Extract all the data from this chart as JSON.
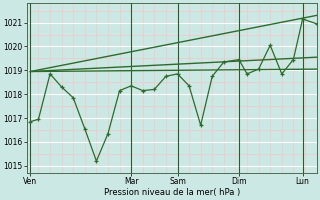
{
  "xlabel": "Pression niveau de la mer( hPa )",
  "bg_color": "#cce8e4",
  "grid_major_color": "#ffffff",
  "grid_minor_color": "#f0c8c8",
  "line_color": "#2d6b2d",
  "vline_color": "#2d5a2d",
  "ylim": [
    1014.7,
    1021.8
  ],
  "yticks": [
    1015,
    1016,
    1017,
    1018,
    1019,
    1020,
    1021
  ],
  "xlim": [
    0,
    25
  ],
  "day_labels": [
    "Ven",
    "Mar",
    "Sam",
    "Dim",
    "Lun"
  ],
  "day_positions": [
    0.3,
    9.0,
    13.0,
    18.3,
    23.8
  ],
  "vline_positions": [
    0.3,
    9.0,
    13.0,
    18.3,
    23.8
  ],
  "zigzag_x": [
    0.3,
    1.0,
    2.0,
    3.0,
    4.0,
    5.0,
    6.0,
    7.0,
    8.0,
    9.0,
    10.0,
    11.0,
    12.0,
    13.0,
    14.0,
    15.0,
    16.0,
    17.0,
    18.3,
    19.0,
    20.0,
    21.0,
    22.0,
    23.0,
    23.8,
    25.0
  ],
  "zigzag_y": [
    1016.85,
    1016.95,
    1018.85,
    1018.3,
    1017.85,
    1016.55,
    1015.2,
    1016.35,
    1018.15,
    1018.35,
    1018.15,
    1018.2,
    1018.75,
    1018.85,
    1018.35,
    1016.7,
    1018.75,
    1019.35,
    1019.45,
    1018.85,
    1019.05,
    1020.05,
    1018.85,
    1019.45,
    1021.15,
    1020.95
  ],
  "trend1_x": [
    0.3,
    25.0
  ],
  "trend1_y": [
    1018.95,
    1019.05
  ],
  "trend2_x": [
    0.3,
    25.0
  ],
  "trend2_y": [
    1018.95,
    1019.55
  ],
  "trend3_x": [
    0.3,
    25.0
  ],
  "trend3_y": [
    1018.95,
    1021.3
  ]
}
